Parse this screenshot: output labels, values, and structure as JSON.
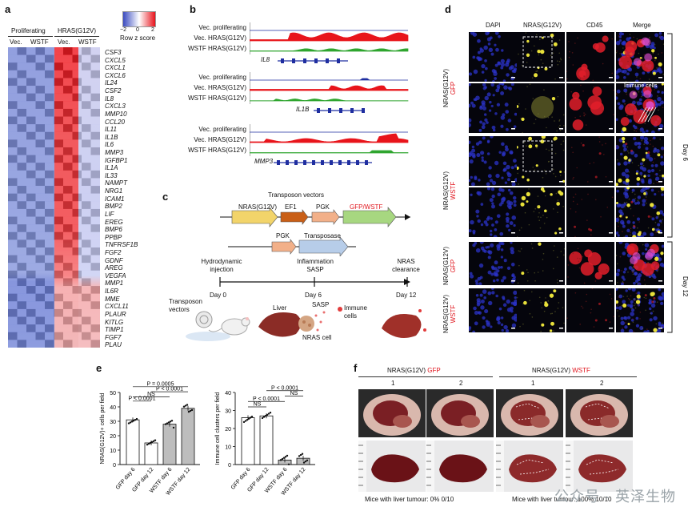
{
  "panels": {
    "a": "a",
    "b": "b",
    "c": "c",
    "d": "d",
    "e": "e",
    "f": "f"
  },
  "panel_a": {
    "group_left": "Proliferating",
    "group_right": "HRAS(G12V)",
    "col_labels": [
      "Vec.",
      "WSTF",
      "Vec.",
      "WSTF"
    ],
    "colorbar_ticks": [
      "−2",
      "0",
      "2"
    ],
    "colorbar_label": "Row z score",
    "colorbar_colors": [
      "#3b4cc0",
      "#ffffff",
      "#e8121b"
    ],
    "genes": [
      "CSF3",
      "CXCL5",
      "CXCL1",
      "CXCL6",
      "IL24",
      "CSF2",
      "IL8",
      "CXCL3",
      "MMP10",
      "CCL20",
      "IL11",
      "IL1B",
      "IL6",
      "MMP3",
      "IGFBP1",
      "IL1A",
      "IL33",
      "NAMPT",
      "NRG1",
      "ICAM1",
      "BMP2",
      "LIF",
      "EREG",
      "BMP6",
      "PPBP",
      "TNFRSF1B",
      "FGF2",
      "GDNF",
      "AREG",
      "VEGFA",
      "MMP1",
      "IL6R",
      "MME",
      "CXCL11",
      "PLAUR",
      "KITLG",
      "TIMP1",
      "FGF7",
      "PLAU"
    ]
  },
  "panel_b": {
    "track_labels": [
      "Vec. proliferating",
      "Vec. HRAS(G12V)",
      "WSTF HRAS(G12V)"
    ],
    "loci": [
      "IL8",
      "IL1B",
      "MMP3"
    ],
    "track_colors": [
      "#1f2ea0",
      "#e8141b",
      "#2fa52f"
    ]
  },
  "panel_c": {
    "title": "Transposon vectors",
    "vec1": [
      "NRAS(G12V)",
      "EF1",
      "PGK",
      "GFP/WSTF"
    ],
    "vec2": [
      "PGK",
      "Transposase"
    ],
    "timeline_labels": [
      "Hydrodynamic injection",
      "Inflammation SASP",
      "NRAS clearance"
    ],
    "days": [
      "Day 0",
      "Day 6",
      "Day 12"
    ],
    "bottom_labels": [
      "Transposon vectors",
      "Liver",
      "SASP",
      "Immune cells",
      "NRAS cell"
    ]
  },
  "panel_d": {
    "col_headers": [
      "DAPI",
      "NRAS(G12V)",
      "CD45",
      "Merge"
    ],
    "row_groups": [
      {
        "label": "NRAS(G12V) GFP",
        "rows": 2
      },
      {
        "label": "NRAS(G12V) WSTF",
        "rows": 2
      },
      {
        "label": "NRAS(G12V) GFP",
        "rows": 1
      },
      {
        "label": "NRAS(G12V) WSTF",
        "rows": 1
      }
    ],
    "immune_label": "Immune cells",
    "day_labels": [
      "Day 6",
      "Day 12"
    ]
  },
  "panel_e": {
    "chart_data": [
      {
        "type": "bar",
        "ylabel": "NRAS(G12V)+ cells per field",
        "categories": [
          "GFP day 6",
          "GFP day 12",
          "WSTF day 6",
          "WSTF day 12"
        ],
        "values": [
          31,
          15,
          28,
          39
        ],
        "ylim": [
          0,
          50
        ],
        "yticks": [
          "0",
          "10",
          "20",
          "30",
          "40",
          "50"
        ],
        "annotations": [
          "P < 0.0001",
          "NS",
          "P < 0.0001",
          "P = 0.0005"
        ]
      },
      {
        "type": "bar",
        "ylabel": "Immune cell clusters per field",
        "categories": [
          "GFP day 6",
          "GFP day 12",
          "WSTF day 6",
          "WSTF day 12"
        ],
        "values": [
          26,
          27,
          2.5,
          3.5
        ],
        "ylim": [
          0,
          40
        ],
        "yticks": [
          "0",
          "10",
          "20",
          "30",
          "40"
        ],
        "annotations": [
          "NS",
          "P < 0.0001",
          "NS",
          "P < 0.0001"
        ]
      }
    ]
  },
  "panel_f": {
    "group_gfp_prefix": "NRAS(G12V)",
    "group_gfp_suffix": "GFP",
    "group_wstf_prefix": "NRAS(G12V)",
    "group_wstf_suffix": "WSTF",
    "mouse_numbers": [
      "1",
      "2",
      "1",
      "2"
    ],
    "caption_left": "Mice with liver tumour: 0%   0/10",
    "caption_right": "Mice with liver tumour: 100%   10/10"
  },
  "watermark": "公众号 · 英泽生物"
}
